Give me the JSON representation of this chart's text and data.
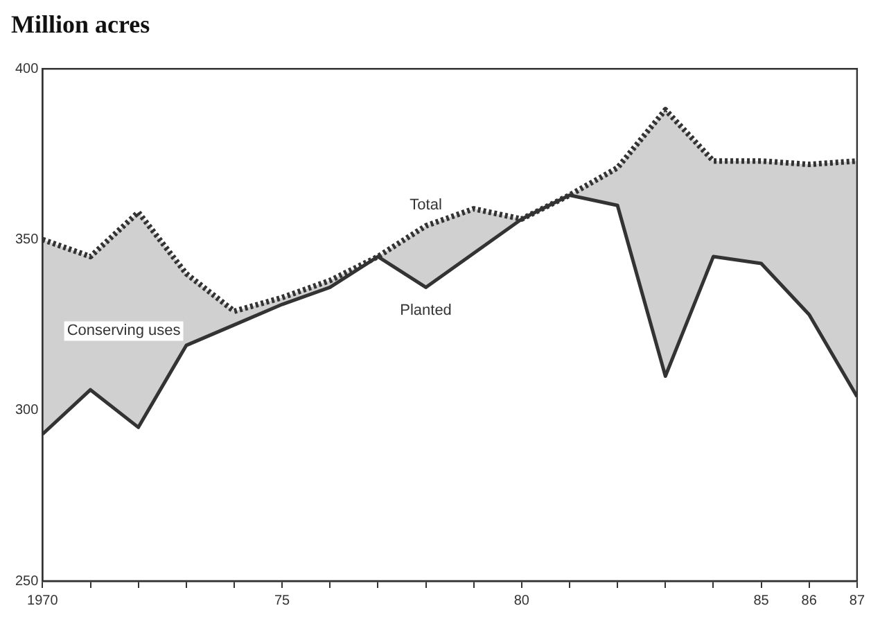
{
  "chart_data": {
    "type": "line",
    "title": "Million acres",
    "x": [
      1970,
      1971,
      1972,
      1973,
      1974,
      1975,
      1976,
      1977,
      1978,
      1979,
      1980,
      1981,
      1982,
      1983,
      1984,
      1985,
      1986,
      1987
    ],
    "series": [
      {
        "name": "Total",
        "color": "#333333",
        "line_style": "dotted",
        "values": [
          350,
          345,
          358,
          340,
          329,
          333,
          338,
          345,
          354,
          359,
          356,
          363,
          371,
          388,
          373,
          373,
          372,
          373
        ],
        "lower": [
          293,
          306,
          295,
          319,
          325,
          331,
          336,
          345,
          336,
          346,
          356,
          363,
          360,
          310,
          345,
          343,
          328,
          304
        ],
        "upper": [
          350,
          345,
          358,
          340,
          329,
          333,
          338,
          345,
          354,
          359,
          356,
          363,
          371,
          388,
          373,
          373,
          372,
          373
        ]
      },
      {
        "name": "Planted",
        "color": "#333333",
        "line_style": "solid",
        "values": [
          293,
          306,
          295,
          319,
          325,
          331,
          336,
          345,
          336,
          346,
          356,
          363,
          360,
          310,
          345,
          343,
          328,
          304
        ]
      }
    ],
    "annotations": [
      "Conserving uses"
    ],
    "xlim": [
      1970,
      1987
    ],
    "xticks": [
      1970,
      {
        "value": 1971,
        "label": null
      },
      {
        "value": 1972,
        "label": null
      },
      {
        "value": 1973,
        "label": null
      },
      {
        "value": 1974,
        "label": null
      },
      {
        "value": 1975,
        "label": "75"
      },
      {
        "value": 1976,
        "label": null
      },
      {
        "value": 1977,
        "label": null
      },
      {
        "value": 1978,
        "label": null
      },
      {
        "value": 1979,
        "label": null
      },
      {
        "value": 1980,
        "label": "80"
      },
      {
        "value": 1981,
        "label": null
      },
      {
        "value": 1982,
        "label": null
      },
      {
        "value": 1983,
        "label": null
      },
      {
        "value": 1984,
        "label": null
      },
      {
        "value": 1985,
        "label": "85"
      },
      {
        "value": 1986,
        "label": "86"
      },
      {
        "value": 1987,
        "label": "87"
      }
    ],
    "ylim": [
      250,
      400
    ],
    "yticks": [
      250,
      300,
      350,
      400
    ],
    "legend": false,
    "marker": "none"
  }
}
